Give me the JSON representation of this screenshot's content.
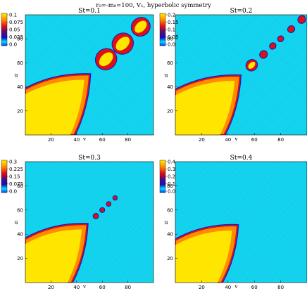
{
  "suptitle": "r₀=-m₀=100, V₁, hyperbolic symmetry",
  "colors": {
    "background_field": "#14d3ee",
    "bulk_yellow": "#ffe600",
    "bulk_orange": "#ff8c00",
    "edge_red": "#e01010",
    "edge_blue": "#0b20c8",
    "grain_line": "#0a7fb0"
  },
  "chart_data": [
    {
      "type": "heatmap",
      "title": "St=0.1",
      "xlabel": "v",
      "ylabel": "u",
      "xlim": [
        0,
        100
      ],
      "ylim": [
        0,
        100
      ],
      "xticks": [
        20,
        40,
        60,
        80
      ],
      "yticks": [
        20,
        40,
        60,
        80
      ],
      "colorbar": {
        "ticks": [
          "0.1",
          "0.075",
          "0.05",
          "0.025",
          "0.0"
        ],
        "max": 0.1,
        "min": 0.0
      },
      "features": {
        "bulk_corner_v": 50,
        "bulk_corner_u": 50,
        "blobs": [
          [
            63,
            63,
            8
          ],
          [
            76,
            76,
            8
          ],
          [
            90,
            90,
            7
          ]
        ]
      }
    },
    {
      "type": "heatmap",
      "title": "St=0.2",
      "xlabel": "v",
      "ylabel": "u",
      "xlim": [
        0,
        100
      ],
      "ylim": [
        0,
        100
      ],
      "xticks": [
        20,
        40,
        60,
        80
      ],
      "yticks": [
        20,
        40,
        60,
        80
      ],
      "colorbar": {
        "ticks": [
          "0.2",
          "0.15",
          "0.1",
          "0.05",
          "0.0"
        ],
        "max": 0.2,
        "min": 0.0
      },
      "features": {
        "bulk_corner_v": 49,
        "bulk_corner_u": 49,
        "blobs": [
          [
            58,
            58,
            4
          ],
          [
            67,
            67,
            2.5
          ],
          [
            74,
            74,
            2
          ],
          [
            80,
            80,
            1.8
          ],
          [
            88,
            88,
            2.2
          ],
          [
            96,
            96,
            2.5
          ]
        ]
      }
    },
    {
      "type": "heatmap",
      "title": "St=0.3",
      "xlabel": "v",
      "ylabel": "u",
      "xlim": [
        0,
        100
      ],
      "ylim": [
        0,
        100
      ],
      "xticks": [
        20,
        40,
        60,
        80
      ],
      "yticks": [
        20,
        40,
        60,
        80
      ],
      "colorbar": {
        "ticks": [
          "0.3",
          "0.225",
          "0.15",
          "0.075",
          "0.0"
        ],
        "max": 0.3,
        "min": 0.0
      },
      "features": {
        "bulk_corner_v": 48,
        "bulk_corner_u": 48,
        "blobs": [
          [
            55,
            55,
            1.6
          ],
          [
            60,
            60,
            1.4
          ],
          [
            65,
            65,
            1.3
          ],
          [
            70,
            70,
            1.2
          ]
        ]
      }
    },
    {
      "type": "heatmap",
      "title": "St=0.4",
      "xlabel": "v",
      "ylabel": "u",
      "xlim": [
        0,
        100
      ],
      "ylim": [
        0,
        100
      ],
      "xticks": [
        20,
        40,
        60,
        80
      ],
      "yticks": [
        20,
        40,
        60,
        80
      ],
      "colorbar": {
        "ticks": [
          "0.4",
          "0.3",
          "0.2",
          "0.1",
          "0.0"
        ],
        "max": 0.4,
        "min": 0.0
      },
      "features": {
        "bulk_corner_v": 47,
        "bulk_corner_u": 47,
        "blobs": []
      }
    }
  ]
}
